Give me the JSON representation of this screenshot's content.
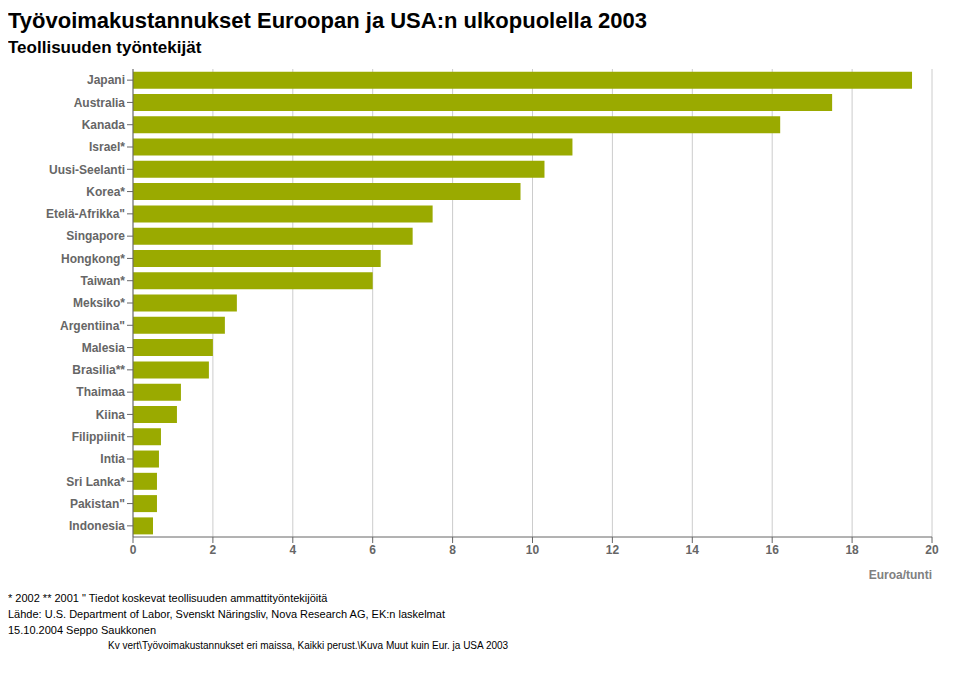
{
  "chart_data": {
    "type": "bar",
    "orientation": "horizontal",
    "title": "Työvoimakustannukset Euroopan ja USA:n ulkopuolella 2003",
    "subtitle": "Teollisuuden työntekijät",
    "x_label": "Euroa/tunti",
    "categories": [
      "Indonesia",
      "Pakistan\"",
      "Sri Lanka*",
      "Intia",
      "Filippiinit",
      "Kiina",
      "Thaimaa",
      "Brasilia**",
      "Malesia",
      "Argentiina\"",
      "Meksiko*",
      "Taiwan*",
      "Hongkong*",
      "Singapore",
      "Etelä-Afrikka\"",
      "Korea*",
      "Uusi-Seelanti",
      "Israel*",
      "Kanada",
      "Australia",
      "Japani"
    ],
    "values": [
      0.5,
      0.6,
      0.6,
      0.65,
      0.7,
      1.1,
      1.2,
      1.9,
      2.0,
      2.3,
      2.6,
      6.0,
      6.2,
      7.0,
      7.5,
      9.7,
      10.3,
      11.0,
      16.2,
      17.5,
      19.5
    ],
    "color": "#9aaa00",
    "xlim": [
      0,
      20
    ],
    "xticks": [
      0,
      2,
      4,
      6,
      8,
      10,
      12,
      14,
      16,
      18,
      20
    ],
    "grid": true,
    "annotations": [
      "* 2002 ** 2001  \" Tiedot koskevat teollisuuden ammattityöntekijöitä",
      "Lähde: U.S. Department of Labor, Svenskt Näringsliv, Nova Research AG, EK:n laskelmat",
      "15.10.2004    Seppo Saukkonen",
      "Kv vert\\Työvoimakustannukset eri maissa, Kaikki perust.\\Kuva Muut kuin Eur. ja USA 2003"
    ]
  }
}
